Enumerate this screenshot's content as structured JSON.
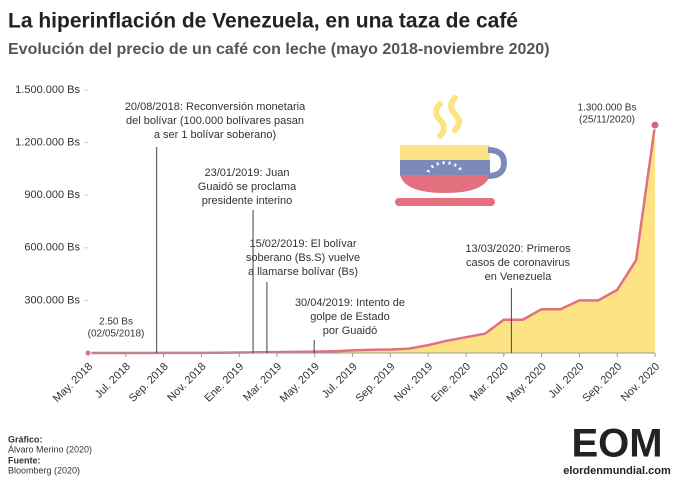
{
  "chart_data": {
    "type": "area",
    "title": "La hiperinflación de Venezuela, en una taza de café",
    "subtitle": "Evolución del precio de un café con leche (mayo 2018-noviembre 2020)",
    "x": [
      "2018-05",
      "2018-06",
      "2018-07",
      "2018-08",
      "2018-09",
      "2018-10",
      "2018-11",
      "2018-12",
      "2019-01",
      "2019-02",
      "2019-03",
      "2019-04",
      "2019-05",
      "2019-06",
      "2019-07",
      "2019-08",
      "2019-09",
      "2019-10",
      "2019-11",
      "2019-12",
      "2020-01",
      "2020-02",
      "2020-03",
      "2020-04",
      "2020-05",
      "2020-06",
      "2020-07",
      "2020-08",
      "2020-09",
      "2020-10",
      "2020-11"
    ],
    "values": [
      2.5,
      5,
      15,
      60,
      300,
      500,
      800,
      1500,
      3000,
      4000,
      5000,
      6000,
      8000,
      10000,
      15000,
      18000,
      20000,
      25000,
      45000,
      70000,
      90000,
      110000,
      190000,
      190000,
      250000,
      250000,
      300000,
      300000,
      360000,
      530000,
      1300000
    ],
    "value_labels": [
      "2.50 Bs",
      null,
      null,
      null,
      null,
      null,
      null,
      null,
      null,
      null,
      null,
      null,
      null,
      null,
      null,
      null,
      null,
      null,
      null,
      null,
      null,
      null,
      null,
      null,
      null,
      null,
      null,
      null,
      null,
      null,
      "1.300.000 Bs"
    ],
    "value_dates": [
      "(02/05/2018)",
      null,
      null,
      null,
      null,
      null,
      null,
      null,
      null,
      null,
      null,
      null,
      null,
      null,
      null,
      null,
      null,
      null,
      null,
      null,
      null,
      null,
      null,
      null,
      null,
      null,
      null,
      null,
      null,
      null,
      "(25/11/2020)"
    ],
    "color": "#e2707f",
    "fill": "#fde384",
    "xlim": [
      "2018-05",
      "2020-11"
    ],
    "xticks": [
      {
        "value": "2018-05",
        "label": "May. 2018"
      },
      {
        "value": "2018-07",
        "label": "Jul. 2018"
      },
      {
        "value": "2018-09",
        "label": "Sep. 2018"
      },
      {
        "value": "2018-11",
        "label": "Nov. 2018"
      },
      {
        "value": "2019-01",
        "label": "Ene. 2019"
      },
      {
        "value": "2019-03",
        "label": "Mar. 2019"
      },
      {
        "value": "2019-05",
        "label": "May. 2019"
      },
      {
        "value": "2019-07",
        "label": "Jul. 2019"
      },
      {
        "value": "2019-09",
        "label": "Sep. 2019"
      },
      {
        "value": "2019-11",
        "label": "Nov. 2019"
      },
      {
        "value": "2020-01",
        "label": "Ene. 2020"
      },
      {
        "value": "2020-03",
        "label": "Mar. 2020"
      },
      {
        "value": "2020-05",
        "label": "May. 2020"
      },
      {
        "value": "2020-07",
        "label": "Jul. 2020"
      },
      {
        "value": "2020-09",
        "label": "Sep. 2020"
      },
      {
        "value": "2020-11",
        "label": "Nov. 2020"
      }
    ],
    "ylim": [
      0,
      1500000
    ],
    "yticks": [
      {
        "value": 300000,
        "label": "300.000 Bs"
      },
      {
        "value": 600000,
        "label": "600.000 Bs"
      },
      {
        "value": 900000,
        "label": "900.000 Bs"
      },
      {
        "value": 1200000,
        "label": "1.200.000 Bs"
      },
      {
        "value": 1500000,
        "label": "1.500.000 Bs"
      }
    ],
    "grid": false,
    "events": [
      {
        "x": "2018-08-20",
        "lines": [
          "20/08/2018: Reconversión monetaria",
          "del bolívar (100.000 bolívares pasan",
          "a ser 1 bolívar soberano)"
        ]
      },
      {
        "x": "2019-01-23",
        "lines": [
          "23/01/2019: Juan",
          "Guaidó se proclama",
          "presidente interino"
        ]
      },
      {
        "x": "2019-02-15",
        "lines": [
          "15/02/2019: El bolívar",
          "soberano (Bs.S) vuelve",
          "a llamarse bolívar (Bs)"
        ]
      },
      {
        "x": "2019-04-30",
        "lines": [
          "30/04/2019: Intento de",
          "golpe de Estado",
          "por Guaidó"
        ]
      },
      {
        "x": "2020-03-13",
        "lines": [
          "13/03/2020: Primeros",
          "casos de coronavirus",
          "en Venezuela"
        ]
      }
    ]
  },
  "footer": {
    "credit_label": "Gráfico:",
    "credit": "Álvaro Merino (2020)",
    "source_label": "Fuente:",
    "source": "Bloomberg (2020)"
  },
  "logo": {
    "mark": "EOM",
    "site": "elordenmundial.com"
  }
}
